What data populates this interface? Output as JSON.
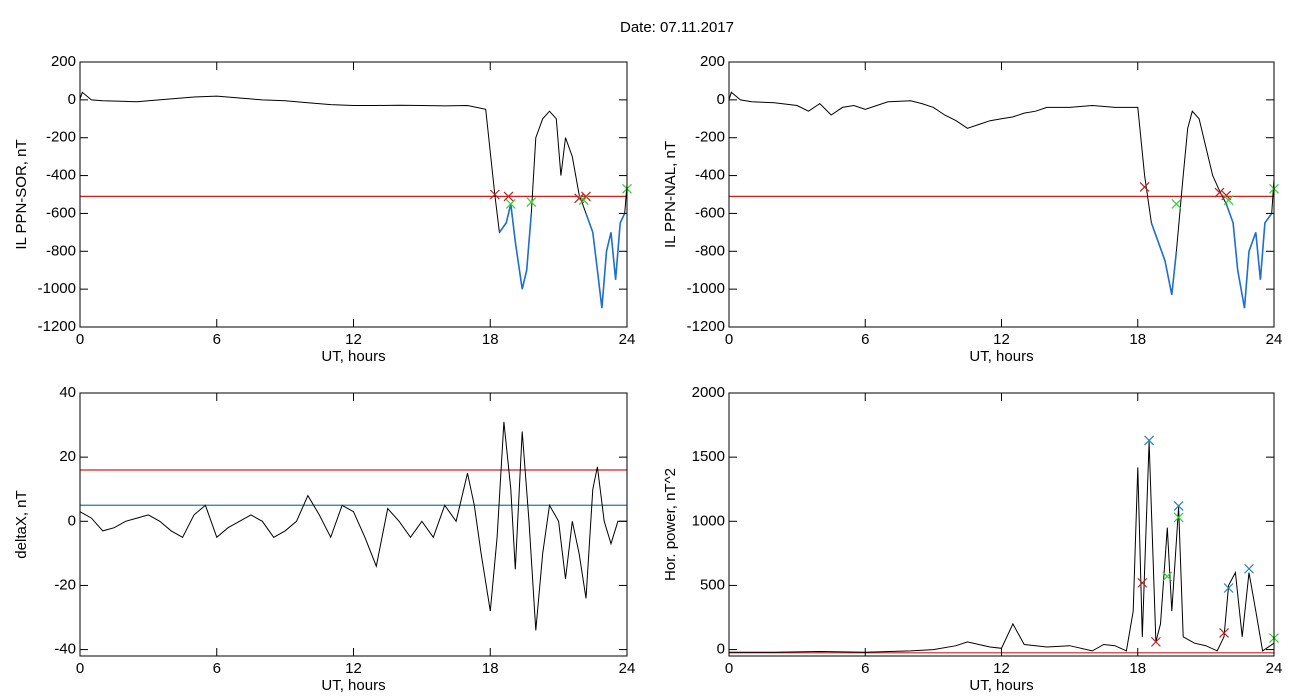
{
  "date_title": "Date:  07.11.2017",
  "chart_data": [
    {
      "type": "line",
      "ylabel": "IL PPN-SOR, nT",
      "xlabel": "UT, hours",
      "xlim": [
        0,
        24
      ],
      "xticks": [
        0,
        6,
        12,
        18,
        24
      ],
      "ylim": [
        -1200,
        200
      ],
      "yticks": [
        -1200,
        -1000,
        -800,
        -600,
        -400,
        -200,
        0,
        200
      ],
      "x": [
        0,
        0.1,
        0.5,
        1,
        2,
        2.5,
        3,
        4,
        5,
        6,
        7,
        8,
        9,
        10,
        11,
        12,
        13,
        14,
        15,
        16,
        17,
        17.8,
        18.2,
        18.4,
        18.7,
        18.9,
        19.1,
        19.4,
        19.6,
        19.8,
        20,
        20.3,
        20.6,
        20.9,
        21.1,
        21.3,
        21.6,
        21.9,
        22.2,
        22.5,
        22.7,
        22.9,
        23.1,
        23.3,
        23.5,
        23.7,
        23.9,
        24
      ],
      "series": [
        {
          "color": "#000000",
          "values": [
            5,
            40,
            0,
            -5,
            -8,
            -10,
            -5,
            5,
            15,
            20,
            10,
            0,
            -5,
            -15,
            -25,
            -30,
            -30,
            -28,
            -30,
            -32,
            -30,
            -50,
            -500,
            -700,
            -650,
            -550,
            -750,
            -1000,
            -900,
            -600,
            -200,
            -100,
            -60,
            -100,
            -400,
            -200,
            -300,
            -500,
            -600,
            -700,
            -900,
            -1100,
            -800,
            -700,
            -950,
            -650,
            -600,
            -450
          ]
        },
        {
          "color": "#1f6fd0",
          "values": [
            null,
            null,
            null,
            null,
            null,
            null,
            null,
            null,
            null,
            null,
            null,
            null,
            null,
            null,
            null,
            null,
            null,
            null,
            null,
            null,
            null,
            null,
            null,
            -700,
            -650,
            -550,
            -750,
            -1000,
            -900,
            -600,
            null,
            null,
            null,
            null,
            null,
            null,
            null,
            null,
            -600,
            -700,
            -900,
            -1100,
            -800,
            -700,
            -950,
            -650,
            -600,
            null
          ]
        }
      ],
      "hlines": [
        {
          "value": -510,
          "color": "#d02020"
        }
      ],
      "markers": {
        "x": [
          18.2,
          18.8,
          21.9,
          22.2,
          18.9,
          19.8,
          22.1,
          24
        ],
        "y": [
          -500,
          -510,
          -520,
          -510,
          -550,
          -540,
          -530,
          -470
        ],
        "colors": [
          "#c02020",
          "#c02020",
          "#c02020",
          "#c02020",
          "#30d030",
          "#30d030",
          "#30d030",
          "#30d030"
        ]
      }
    },
    {
      "type": "line",
      "ylabel": "IL PPN-NAL, nT",
      "xlabel": "UT, hours",
      "xlim": [
        0,
        24
      ],
      "xticks": [
        0,
        6,
        12,
        18,
        24
      ],
      "ylim": [
        -1200,
        200
      ],
      "yticks": [
        -1200,
        -1000,
        -800,
        -600,
        -400,
        -200,
        0,
        200
      ],
      "x": [
        0,
        0.1,
        0.5,
        1,
        2,
        3,
        3.5,
        4,
        4.5,
        5,
        5.5,
        6,
        7,
        8,
        8.5,
        9,
        9.5,
        10,
        10.5,
        11,
        11.5,
        12,
        12.5,
        13,
        13.5,
        14,
        15,
        16,
        17,
        18,
        18.3,
        18.6,
        18.9,
        19.2,
        19.5,
        19.7,
        20,
        20.2,
        20.4,
        20.7,
        21,
        21.3,
        21.6,
        21.9,
        22.2,
        22.4,
        22.7,
        22.9,
        23.2,
        23.4,
        23.6,
        23.9,
        24
      ],
      "series": [
        {
          "color": "#000000",
          "values": [
            0,
            40,
            0,
            -10,
            -15,
            -30,
            -60,
            -20,
            -80,
            -40,
            -30,
            -50,
            -10,
            -5,
            -20,
            -40,
            -80,
            -110,
            -150,
            -130,
            -110,
            -100,
            -90,
            -70,
            -60,
            -40,
            -40,
            -30,
            -40,
            -40,
            -400,
            -650,
            -750,
            -850,
            -1030,
            -800,
            -400,
            -150,
            -60,
            -100,
            -250,
            -400,
            -480,
            -550,
            -650,
            -900,
            -1100,
            -800,
            -700,
            -950,
            -650,
            -600,
            -420
          ]
        },
        {
          "color": "#1f6fd0",
          "values": [
            null,
            null,
            null,
            null,
            null,
            null,
            null,
            null,
            null,
            null,
            null,
            null,
            null,
            null,
            null,
            null,
            null,
            null,
            null,
            null,
            null,
            null,
            null,
            null,
            null,
            null,
            null,
            null,
            null,
            null,
            null,
            -650,
            -750,
            -850,
            -1030,
            -800,
            null,
            null,
            null,
            null,
            null,
            null,
            null,
            -550,
            -650,
            -900,
            -1100,
            -800,
            -700,
            -950,
            -650,
            -600,
            null
          ]
        }
      ],
      "hlines": [
        {
          "value": -510,
          "color": "#d02020"
        }
      ],
      "markers": {
        "x": [
          18.3,
          21.6,
          21.9,
          19.7,
          22,
          24
        ],
        "y": [
          -460,
          -490,
          -505,
          -550,
          -530,
          -470
        ],
        "colors": [
          "#c02020",
          "#c02020",
          "#c02020",
          "#30d030",
          "#30d030",
          "#30d030"
        ]
      }
    },
    {
      "type": "line",
      "ylabel": "deltaX, nT",
      "xlabel": "UT, hours",
      "xlim": [
        0,
        24
      ],
      "xticks": [
        0,
        6,
        12,
        18,
        24
      ],
      "ylim": [
        -42,
        40
      ],
      "yticks": [
        -40,
        -20,
        0,
        20,
        40
      ],
      "x": [
        0,
        0.5,
        1,
        1.5,
        2,
        2.5,
        3,
        3.5,
        4,
        4.5,
        5,
        5.5,
        6,
        6.5,
        7,
        7.5,
        8,
        8.5,
        9,
        9.5,
        10,
        10.5,
        11,
        11.5,
        12,
        12.5,
        13,
        13.5,
        14,
        14.5,
        15,
        15.5,
        16,
        16.5,
        17,
        17.3,
        17.6,
        18,
        18.3,
        18.6,
        18.9,
        19.1,
        19.4,
        19.7,
        20,
        20.3,
        20.6,
        21,
        21.3,
        21.6,
        21.9,
        22.2,
        22.5,
        22.7,
        23,
        23.3,
        23.6,
        24
      ],
      "series": [
        {
          "color": "#000000",
          "values": [
            3,
            1,
            -3,
            -2,
            0,
            1,
            2,
            0,
            -3,
            -5,
            2,
            5,
            -5,
            -2,
            0,
            2,
            0,
            -5,
            -3,
            0,
            8,
            2,
            -5,
            5,
            3,
            -5,
            -14,
            4,
            0,
            -5,
            0,
            -5,
            5,
            0,
            15,
            5,
            -10,
            -28,
            -5,
            31,
            10,
            -15,
            28,
            0,
            -34,
            -10,
            5,
            0,
            -18,
            0,
            -10,
            -24,
            10,
            17,
            0,
            -7,
            0,
            0
          ]
        }
      ],
      "hlines": [
        {
          "value": 16,
          "color": "#d02020"
        },
        {
          "value": 5,
          "color": "#1f7fa0"
        }
      ]
    },
    {
      "type": "line",
      "ylabel": "Hor. power, nT^2",
      "xlabel": "UT, hours",
      "xlim": [
        0,
        24
      ],
      "xticks": [
        0,
        6,
        12,
        18,
        24
      ],
      "ylim": [
        -50,
        2000
      ],
      "yticks": [
        0,
        500,
        1000,
        1500,
        2000
      ],
      "x": [
        0,
        2,
        4,
        6,
        8,
        9,
        10,
        10.5,
        11,
        11.5,
        12,
        12.5,
        13,
        14,
        15,
        16,
        16.5,
        17,
        17.5,
        17.8,
        18,
        18.2,
        18.5,
        18.8,
        19,
        19.3,
        19.5,
        19.8,
        20,
        20.5,
        21,
        21.5,
        21.8,
        22,
        22.3,
        22.6,
        22.9,
        23.2,
        23.5,
        24
      ],
      "series": [
        {
          "color": "#000000",
          "values": [
            -20,
            -20,
            -15,
            -20,
            -10,
            0,
            30,
            60,
            40,
            20,
            10,
            200,
            40,
            20,
            30,
            -10,
            40,
            30,
            -10,
            300,
            1420,
            100,
            1620,
            60,
            200,
            950,
            300,
            1110,
            100,
            50,
            30,
            -10,
            100,
            500,
            600,
            100,
            600,
            300,
            -10,
            50
          ]
        }
      ],
      "hlines": [
        {
          "value": -25,
          "color": "#d02020"
        }
      ],
      "markers": {
        "x": [
          18.5,
          19.8,
          22,
          22.9,
          19.3,
          19.8,
          24,
          18.2,
          18.8,
          21.8
        ],
        "y": [
          1630,
          1120,
          480,
          630,
          570,
          1030,
          90,
          520,
          60,
          130
        ],
        "colors": [
          "#2080c0",
          "#2080c0",
          "#2080c0",
          "#2080c0",
          "#30d030",
          "#30d030",
          "#30d030",
          "#c02020",
          "#c02020",
          "#c02020"
        ]
      }
    }
  ]
}
